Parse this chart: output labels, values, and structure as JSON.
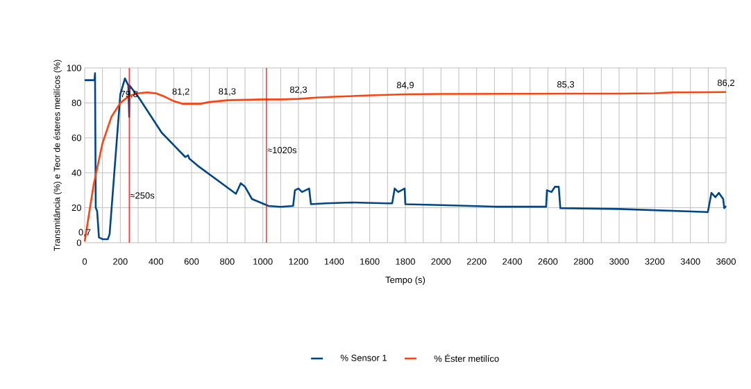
{
  "chart_data": {
    "type": "line",
    "xlabel": "Tempo (s)",
    "ylabel": "Transmitância (%) e Teor de ésteres metilícos (%)",
    "xlim": [
      0,
      3600
    ],
    "ylim": [
      0,
      100
    ],
    "xticks": [
      0,
      {
        "value": 100,
        "label": null
      },
      200,
      {
        "value": 300,
        "label": null
      },
      400,
      {
        "value": 500,
        "label": null
      },
      600,
      {
        "value": 700,
        "label": null
      },
      800,
      {
        "value": 900,
        "label": null
      },
      1000,
      {
        "value": 1100,
        "label": null
      },
      1200,
      {
        "value": 1300,
        "label": null
      },
      1400,
      {
        "value": 1500,
        "label": null
      },
      1600,
      {
        "value": 1700,
        "label": null
      },
      1800,
      {
        "value": 1900,
        "label": null
      },
      2000,
      {
        "value": 2100,
        "label": null
      },
      2200,
      {
        "value": 2300,
        "label": null
      },
      2400,
      {
        "value": 2500,
        "label": null
      },
      2600,
      {
        "value": 2700,
        "label": null
      },
      2800,
      {
        "value": 2900,
        "label": null
      },
      3000,
      {
        "value": 3100,
        "label": null
      },
      3200,
      {
        "value": 3300,
        "label": null
      },
      3400,
      {
        "value": 3500,
        "label": null
      },
      3600
    ],
    "yticks": [
      0,
      20,
      40,
      60,
      80,
      100
    ],
    "grid": true,
    "legend": "bottom",
    "series": [
      {
        "name": "% Sensor 1",
        "color": "#004586",
        "x": [
          0,
          55,
          58,
          62,
          70,
          80,
          100,
          130,
          140,
          200,
          226,
          245,
          250,
          252,
          304,
          432,
          565,
          580,
          588,
          600,
          635,
          849,
          876,
          900,
          939,
          1032,
          1100,
          1170,
          1180,
          1200,
          1220,
          1260,
          1270,
          1350,
          1500,
          1700,
          1726,
          1740,
          1760,
          1796,
          1800,
          2000,
          2300,
          2590,
          2595,
          2620,
          2640,
          2661,
          2670,
          3000,
          3498,
          3518,
          3540,
          3560,
          3584,
          3590,
          3600
        ],
        "values": [
          93,
          93,
          97,
          20,
          18,
          3,
          2,
          2,
          5,
          85,
          94,
          90,
          72,
          90,
          83,
          63,
          49,
          50,
          48,
          47,
          44,
          28,
          34,
          32,
          25,
          21,
          20.5,
          21,
          30,
          31,
          29,
          31,
          22,
          22.5,
          23,
          22.5,
          22.5,
          31,
          29,
          31,
          22,
          21.5,
          20.6,
          20.6,
          30,
          29,
          32,
          32,
          19.8,
          19.3,
          17.5,
          28.5,
          26,
          28.5,
          25,
          19.8,
          21
        ]
      },
      {
        "name": "% Éster metilíco",
        "color": "#ff420e",
        "x": [
          0,
          50,
          100,
          150,
          200,
          250,
          300,
          350,
          400,
          450,
          500,
          550,
          600,
          650,
          700,
          800,
          1000,
          1100,
          1200,
          1300,
          1400,
          1600,
          1800,
          2000,
          2400,
          2700,
          3000,
          3200,
          3300,
          3600
        ],
        "values": [
          0.7,
          33,
          57,
          72,
          80,
          84,
          85.5,
          86,
          85.5,
          83.5,
          81,
          79.5,
          79.5,
          79.5,
          80.5,
          81.5,
          82,
          82,
          82.3,
          83,
          83.5,
          84.3,
          84.9,
          85.1,
          85.2,
          85.3,
          85.3,
          85.5,
          86,
          86.2
        ]
      }
    ],
    "ref_lines": [
      {
        "axis": "x",
        "value": 250,
        "label": "≈250s",
        "color": "#ff0000"
      },
      {
        "axis": "x",
        "value": 1020,
        "label": "≈1020s",
        "color": "#ff0000"
      }
    ],
    "annotations": [
      {
        "text": "0,7",
        "x": 0,
        "y": 0.7
      },
      {
        "text": "79,8",
        "x": 250,
        "y": 79.8
      },
      {
        "text": "81,2",
        "x": 540,
        "y": 81.2
      },
      {
        "text": "81,3",
        "x": 800,
        "y": 81.3
      },
      {
        "text": "82,3",
        "x": 1200,
        "y": 82.3
      },
      {
        "text": "84,9",
        "x": 1800,
        "y": 84.9
      },
      {
        "text": "85,3",
        "x": 2700,
        "y": 85.3
      },
      {
        "text": "86,2",
        "x": 3600,
        "y": 86.2
      }
    ]
  }
}
